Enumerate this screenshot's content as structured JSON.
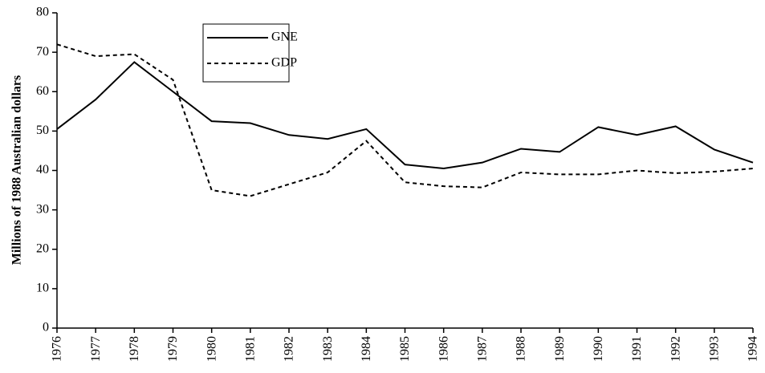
{
  "chart_data": {
    "type": "line",
    "y_label": "Millions of 1988 Australian dollars",
    "x": [
      1976,
      1977,
      1978,
      1979,
      1980,
      1981,
      1982,
      1983,
      1984,
      1985,
      1986,
      1987,
      1988,
      1989,
      1990,
      1991,
      1992,
      1993,
      1994
    ],
    "series": [
      {
        "name": "GNE",
        "color": "#000000",
        "style": "solid",
        "values": [
          50.5,
          58,
          67.5,
          60,
          52.5,
          52,
          49,
          48,
          50.5,
          41.5,
          40.5,
          42,
          45.5,
          44.7,
          51,
          49,
          51.2,
          45.3,
          42
        ]
      },
      {
        "name": "GDP",
        "color": "#000000",
        "style": "dashed",
        "values": [
          72,
          69,
          69.5,
          63,
          35,
          33.5,
          36.5,
          39.5,
          47.5,
          37,
          36,
          35.7,
          39.5,
          39,
          39,
          40,
          39.3,
          39.7,
          40.5
        ]
      }
    ],
    "xlim": [
      1976,
      1994
    ],
    "xticks": [
      1976,
      1977,
      1978,
      1979,
      1980,
      1981,
      1982,
      1983,
      1984,
      1985,
      1986,
      1987,
      1988,
      1989,
      1990,
      1991,
      1992,
      1993,
      1994
    ],
    "ylim": [
      0,
      80
    ],
    "yticks": [
      0,
      10,
      20,
      30,
      40,
      50,
      60,
      70,
      80
    ],
    "grid": false
  }
}
